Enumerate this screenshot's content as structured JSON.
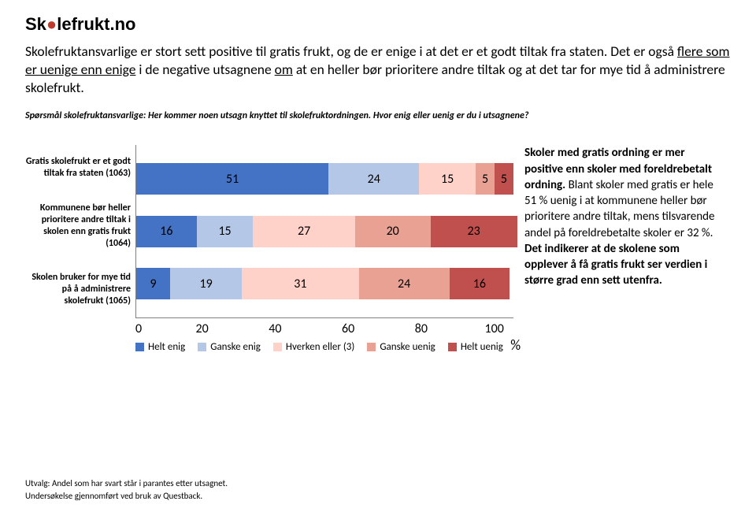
{
  "logo": {
    "text": "Skolefrukt.no"
  },
  "headline_plain_start": "Skolefruktansvarlige er stort sett positive til gratis frukt, og de er enige i at det er et godt tiltak fra staten. Det er også ",
  "headline_u1": "flere som er uenige enn enige",
  "headline_mid": " i de negative utsagnene ",
  "headline_u2": "om",
  "headline_end": " at en heller bør prioritere andre tiltak og at det tar for mye tid å administrere skolefrukt.",
  "question": "Spørsmål skolefruktansvarlige: Her kommer noen utsagn knyttet til skolefruktordningen. Hvor enig eller uenig er du i utsagnene?",
  "chart": {
    "type": "stacked-bar-horizontal",
    "xlim": [
      0,
      100
    ],
    "xtick_step": 20,
    "xticks": [
      "0",
      "20",
      "40",
      "60",
      "80",
      "100"
    ],
    "pct_label": "%",
    "series": [
      {
        "name": "Helt enig",
        "color": "#4472c4"
      },
      {
        "name": "Ganske enig",
        "color": "#b4c7e7"
      },
      {
        "name": "Hverken eller (3)",
        "color": "#ffd2c9"
      },
      {
        "name": "Ganske uenig",
        "color": "#e8a192"
      },
      {
        "name": "Helt uenig",
        "color": "#c0504d"
      }
    ],
    "rows": [
      {
        "label": "Gratis skolefrukt er et godt tiltak fra staten (1063)",
        "values": [
          51,
          24,
          15,
          5,
          5
        ]
      },
      {
        "label": "Kommunene bør heller prioritere andre tiltak i skolen enn gratis frukt (1064)",
        "values": [
          16,
          15,
          27,
          20,
          23
        ]
      },
      {
        "label": "Skolen bruker for mye tid på å administrere skolefrukt (1065)",
        "values": [
          9,
          19,
          31,
          24,
          16
        ]
      }
    ]
  },
  "sidebox_runs": [
    {
      "text": "Skoler med gratis ordning er mer positive enn skoler med foreldrebetalt ordning.",
      "bold": true
    },
    {
      "text": " Blant skoler med gratis er hele 51 % uenig i at kommunene heller bør prioritere andre tiltak, mens tilsvarende andel på foreldrebetalte skoler er 32 %. ",
      "bold": false
    },
    {
      "text": "Det indikerer at de skolene som opplever å få gratis frukt ser verdien i større grad enn sett utenfra.",
      "bold": true
    }
  ],
  "footer": {
    "line1": "Utvalg:  Andel som har svart står i parantes etter utsagnet.",
    "line2": "Undersøkelse gjennomført ved bruk av Questback."
  }
}
